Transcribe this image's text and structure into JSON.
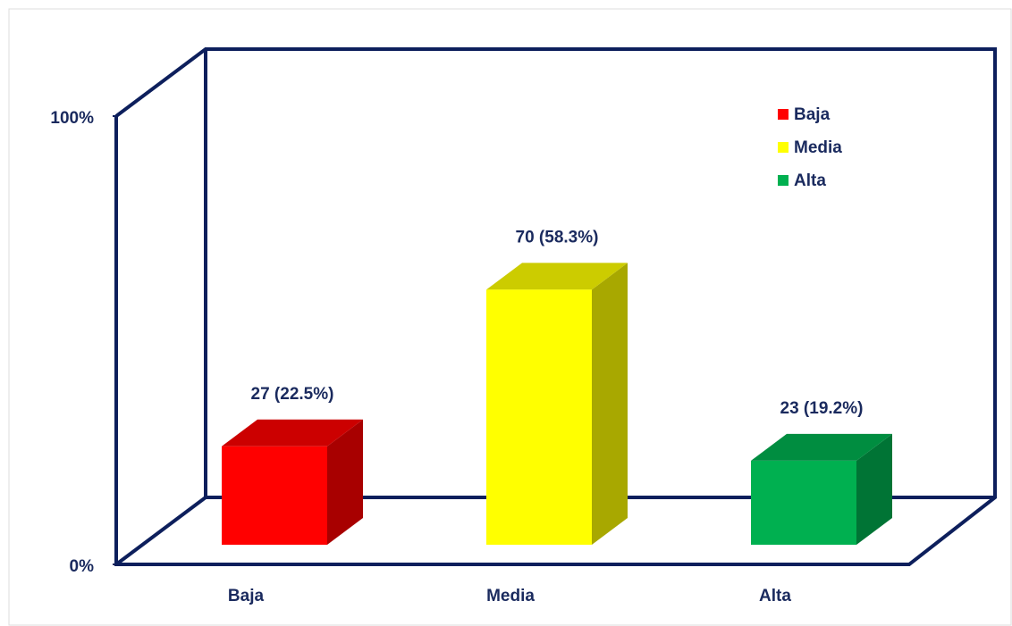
{
  "chart_data": {
    "type": "bar3d",
    "categories": [
      "Baja",
      "Media",
      "Alta"
    ],
    "values": [
      22.5,
      58.3,
      19.2
    ],
    "value_labels": [
      "27 (22.5%)",
      "70 (58.3%)",
      "23 (19.2%)"
    ],
    "colors": [
      "#ff0000",
      "#ffff00",
      "#00b050"
    ],
    "ylim": [
      0,
      100
    ],
    "yticks": [
      {
        "value": 0,
        "label": "0%"
      },
      {
        "value": 100,
        "label": "100%"
      }
    ],
    "legend": "top-right"
  }
}
